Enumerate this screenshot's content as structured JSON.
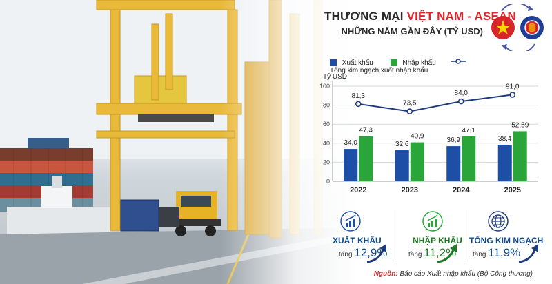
{
  "title": {
    "prefix": "THƯƠNG MẠI",
    "highlight": "VIỆT NAM -  ASEAN",
    "subtitle": "NHỮNG NĂM GẦN ĐÂY (TỶ USD)"
  },
  "colors": {
    "export": "#1d4fa6",
    "import": "#2aa53a",
    "total": "#1d3a7a",
    "accent": "#e0262a"
  },
  "legend": {
    "export_label": "Xuất khẩu",
    "import_label": "Nhập khẩu",
    "total_label": "Tổng kim ngạch xuất nhập khẩu"
  },
  "chart_data": {
    "type": "bar",
    "categories": [
      "2022",
      "2023",
      "2024",
      "2025"
    ],
    "series": [
      {
        "name": "Xuất khẩu",
        "values": [
          34.0,
          32.6,
          36.9,
          38.4
        ],
        "labels": [
          "34,0",
          "32,6",
          "36,9",
          "38,4"
        ]
      },
      {
        "name": "Nhập khẩu",
        "values": [
          47.3,
          40.9,
          47.1,
          52.59
        ],
        "labels": [
          "47,3",
          "40,9",
          "47,1",
          "52,59"
        ]
      }
    ],
    "line_series": {
      "name": "Tổng kim ngạch xuất nhập khẩu",
      "values": [
        81.3,
        73.5,
        84.0,
        91.0
      ],
      "labels": [
        "81,3",
        "73,5",
        "84,0",
        "91,0"
      ]
    },
    "ylabel": "Tỷ USD",
    "ylim": [
      0,
      100
    ],
    "yticks": [
      "0",
      "20",
      "40",
      "60",
      "80",
      "100"
    ],
    "grid": true,
    "legend_position": "top"
  },
  "stats": [
    {
      "name": "XUẤT KHẨU",
      "prefix": "tăng",
      "value": "12,9%",
      "icon": "bar-chart-up-icon"
    },
    {
      "name": "NHẬP KHẨU",
      "prefix": "tăng",
      "value": "11,2%",
      "icon": "bar-chart-up-icon"
    },
    {
      "name": "TỔNG KIM NGẠCH",
      "prefix": "tăng",
      "value": "11,9%",
      "icon": "globe-icon"
    }
  ],
  "source": {
    "label": "Nguồn:",
    "text": "Báo cáo Xuất nhập khẩu (Bộ Công thương)"
  }
}
